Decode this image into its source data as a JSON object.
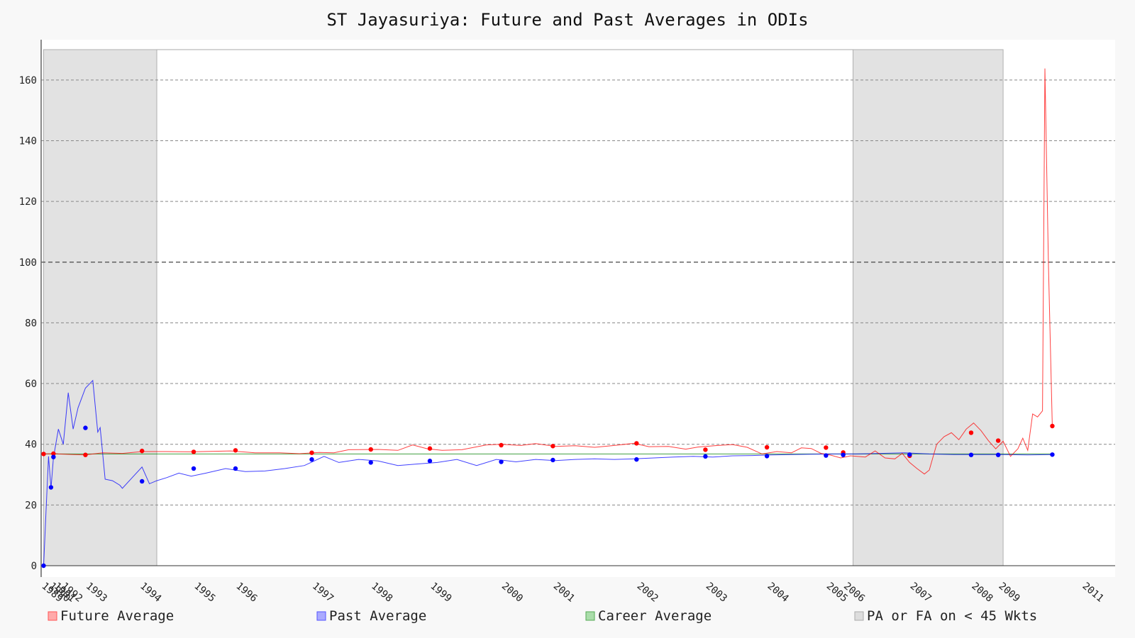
{
  "chart_data": {
    "type": "line",
    "title": "ST Jayasuriya: Future and Past Averages in ODIs",
    "xlabel": "",
    "ylabel": "",
    "xlim": [
      1989.95,
      2011.2
    ],
    "ylim": [
      0,
      170
    ],
    "yticks": [
      0,
      20,
      40,
      60,
      80,
      100,
      120,
      140,
      160
    ],
    "reference_line": 100,
    "grid": true,
    "x_tick_labels": [
      {
        "x": 1989.95,
        "label": "1989"
      },
      {
        "x": 1990.1,
        "label": "1990"
      },
      {
        "x": 1990.2,
        "label": "1991"
      },
      {
        "x": 1990.35,
        "label": "1992"
      },
      {
        "x": 1990.85,
        "label": "1993"
      },
      {
        "x": 1991.95,
        "label": "1994"
      },
      {
        "x": 1993.05,
        "label": "1995"
      },
      {
        "x": 1993.9,
        "label": "1996"
      },
      {
        "x": 1995.45,
        "label": "1997"
      },
      {
        "x": 1996.65,
        "label": "1998"
      },
      {
        "x": 1997.85,
        "label": "1999"
      },
      {
        "x": 1999.3,
        "label": "2000"
      },
      {
        "x": 2000.35,
        "label": "2001"
      },
      {
        "x": 2002.05,
        "label": "2002"
      },
      {
        "x": 2003.45,
        "label": "2003"
      },
      {
        "x": 2004.7,
        "label": "2004"
      },
      {
        "x": 2005.9,
        "label": "2005"
      },
      {
        "x": 2006.25,
        "label": "2006"
      },
      {
        "x": 2007.6,
        "label": "2007"
      },
      {
        "x": 2008.85,
        "label": "2008"
      },
      {
        "x": 2009.4,
        "label": "2009"
      },
      {
        "x": 2011.1,
        "label": "2011"
      }
    ],
    "shaded_regions": [
      {
        "x0": 1990.0,
        "x1": 1992.3
      },
      {
        "x0": 2006.45,
        "x1": 2009.5
      }
    ],
    "series": [
      {
        "name": "Future Average",
        "color": "#ff0000",
        "points": [
          [
            1990.0,
            36.8
          ],
          [
            1990.15,
            36.9
          ],
          [
            1990.2,
            37.0
          ],
          [
            1990.3,
            36.8
          ],
          [
            1990.6,
            36.6
          ],
          [
            1990.85,
            36.5
          ],
          [
            1991.2,
            37.2
          ],
          [
            1991.6,
            37.0
          ],
          [
            1992.0,
            37.6
          ],
          [
            1992.5,
            37.6
          ],
          [
            1993.0,
            37.5
          ],
          [
            1993.8,
            37.8
          ],
          [
            1994.3,
            37.2
          ],
          [
            1994.8,
            37.2
          ],
          [
            1995.2,
            36.9
          ],
          [
            1995.6,
            37.3
          ],
          [
            1995.9,
            37.2
          ],
          [
            1996.2,
            38.2
          ],
          [
            1996.8,
            38.3
          ],
          [
            1997.2,
            38.0
          ],
          [
            1997.5,
            39.8
          ],
          [
            1997.8,
            38.5
          ],
          [
            1998.1,
            38.0
          ],
          [
            1998.5,
            38.2
          ],
          [
            1999.0,
            39.8
          ],
          [
            1999.3,
            40.0
          ],
          [
            1999.7,
            39.6
          ],
          [
            2000.0,
            40.2
          ],
          [
            2000.4,
            39.3
          ],
          [
            2000.8,
            39.5
          ],
          [
            2001.2,
            39.0
          ],
          [
            2001.6,
            39.6
          ],
          [
            2002.0,
            40.3
          ],
          [
            2002.3,
            39.2
          ],
          [
            2002.7,
            39.3
          ],
          [
            2003.05,
            38.4
          ],
          [
            2003.3,
            39.1
          ],
          [
            2003.7,
            39.6
          ],
          [
            2004.0,
            39.9
          ],
          [
            2004.3,
            39.0
          ],
          [
            2004.6,
            36.8
          ],
          [
            2004.9,
            37.6
          ],
          [
            2005.2,
            37.2
          ],
          [
            2005.4,
            38.8
          ],
          [
            2005.6,
            38.6
          ],
          [
            2005.8,
            37.0
          ],
          [
            2006.0,
            36.4
          ],
          [
            2006.2,
            35.5
          ],
          [
            2006.4,
            36.2
          ],
          [
            2006.7,
            35.8
          ],
          [
            2006.9,
            37.8
          ],
          [
            2007.1,
            35.5
          ],
          [
            2007.3,
            35.2
          ],
          [
            2007.45,
            37.0
          ],
          [
            2007.6,
            34.0
          ],
          [
            2007.75,
            32.0
          ],
          [
            2007.9,
            30.2
          ],
          [
            2008.0,
            31.5
          ],
          [
            2008.15,
            40.0
          ],
          [
            2008.3,
            42.5
          ],
          [
            2008.45,
            43.8
          ],
          [
            2008.6,
            41.5
          ],
          [
            2008.75,
            45.0
          ],
          [
            2008.9,
            47.0
          ],
          [
            2009.05,
            44.5
          ],
          [
            2009.2,
            41.2
          ],
          [
            2009.35,
            38.5
          ],
          [
            2009.5,
            41.0
          ],
          [
            2009.65,
            36.0
          ],
          [
            2009.8,
            38.5
          ],
          [
            2009.9,
            42.0
          ],
          [
            2010.0,
            38.0
          ],
          [
            2010.1,
            50.0
          ],
          [
            2010.2,
            49.0
          ],
          [
            2010.3,
            51.0
          ],
          [
            2010.35,
            163.8
          ],
          [
            2010.42,
            100.0
          ],
          [
            2010.5,
            46.0
          ]
        ],
        "markers": [
          [
            1990.0,
            36.8
          ],
          [
            1990.2,
            36.9
          ],
          [
            1990.85,
            36.5
          ],
          [
            1992.0,
            37.8
          ],
          [
            1993.05,
            37.5
          ],
          [
            1993.9,
            38.0
          ],
          [
            1995.45,
            37.2
          ],
          [
            1996.65,
            38.3
          ],
          [
            1997.85,
            38.6
          ],
          [
            1999.3,
            39.7
          ],
          [
            2000.35,
            39.4
          ],
          [
            2002.05,
            40.3
          ],
          [
            2003.45,
            38.2
          ],
          [
            2004.7,
            39.0
          ],
          [
            2005.9,
            38.9
          ],
          [
            2006.25,
            37.3
          ],
          [
            2007.6,
            36.2
          ],
          [
            2008.85,
            43.8
          ],
          [
            2009.4,
            41.2
          ],
          [
            2010.5,
            46.0
          ]
        ]
      },
      {
        "name": "Past Average",
        "color": "#0000ff",
        "points": [
          [
            1990.0,
            0.0
          ],
          [
            1990.05,
            18.0
          ],
          [
            1990.1,
            36.0
          ],
          [
            1990.15,
            25.5
          ],
          [
            1990.2,
            35.5
          ],
          [
            1990.3,
            45.0
          ],
          [
            1990.4,
            40.0
          ],
          [
            1990.5,
            57.0
          ],
          [
            1990.6,
            45.0
          ],
          [
            1990.7,
            52.0
          ],
          [
            1990.85,
            58.5
          ],
          [
            1991.0,
            61.0
          ],
          [
            1991.1,
            44.0
          ],
          [
            1991.15,
            45.5
          ],
          [
            1991.25,
            28.5
          ],
          [
            1991.4,
            28.0
          ],
          [
            1991.55,
            26.5
          ],
          [
            1991.6,
            25.5
          ],
          [
            1991.8,
            29.0
          ],
          [
            1992.0,
            32.5
          ],
          [
            1992.15,
            27.0
          ],
          [
            1992.3,
            28.0
          ],
          [
            1992.5,
            29.0
          ],
          [
            1992.75,
            30.5
          ],
          [
            1993.0,
            29.5
          ],
          [
            1993.3,
            30.5
          ],
          [
            1993.7,
            32.0
          ],
          [
            1994.1,
            31.0
          ],
          [
            1994.5,
            31.2
          ],
          [
            1994.9,
            32.0
          ],
          [
            1995.3,
            33.0
          ],
          [
            1995.7,
            36.0
          ],
          [
            1996.0,
            34.0
          ],
          [
            1996.4,
            35.0
          ],
          [
            1996.8,
            34.5
          ],
          [
            1997.2,
            33.0
          ],
          [
            1997.6,
            33.5
          ],
          [
            1998.0,
            34.0
          ],
          [
            1998.4,
            35.0
          ],
          [
            1998.8,
            33.0
          ],
          [
            1999.2,
            35.0
          ],
          [
            1999.6,
            34.2
          ],
          [
            2000.0,
            35.0
          ],
          [
            2000.4,
            34.6
          ],
          [
            2000.8,
            35.0
          ],
          [
            2001.2,
            35.2
          ],
          [
            2001.6,
            35.0
          ],
          [
            2002.0,
            35.2
          ],
          [
            2002.4,
            35.5
          ],
          [
            2002.8,
            35.8
          ],
          [
            2003.2,
            36.0
          ],
          [
            2003.6,
            35.8
          ],
          [
            2004.0,
            36.2
          ],
          [
            2004.4,
            36.3
          ],
          [
            2004.8,
            36.5
          ],
          [
            2005.2,
            36.6
          ],
          [
            2005.6,
            36.7
          ],
          [
            2006.0,
            36.8
          ],
          [
            2006.5,
            36.8
          ],
          [
            2007.0,
            37.0
          ],
          [
            2007.5,
            37.2
          ],
          [
            2008.0,
            36.8
          ],
          [
            2008.5,
            36.6
          ],
          [
            2009.0,
            36.6
          ],
          [
            2009.5,
            36.6
          ],
          [
            2010.0,
            36.5
          ],
          [
            2010.5,
            36.6
          ]
        ],
        "markers": [
          [
            1990.0,
            0.0
          ],
          [
            1990.15,
            25.8
          ],
          [
            1990.2,
            35.8
          ],
          [
            1990.85,
            45.4
          ],
          [
            1992.0,
            27.8
          ],
          [
            1993.05,
            32.0
          ],
          [
            1993.9,
            32.0
          ],
          [
            1995.45,
            35.0
          ],
          [
            1996.65,
            34.0
          ],
          [
            1997.85,
            34.5
          ],
          [
            1999.3,
            34.2
          ],
          [
            2000.35,
            34.8
          ],
          [
            2002.05,
            35.0
          ],
          [
            2003.45,
            36.0
          ],
          [
            2004.7,
            36.1
          ],
          [
            2005.9,
            36.3
          ],
          [
            2006.25,
            36.5
          ],
          [
            2007.6,
            36.6
          ],
          [
            2008.85,
            36.5
          ],
          [
            2009.4,
            36.5
          ],
          [
            2010.5,
            36.6
          ]
        ]
      },
      {
        "name": "Career Average",
        "color": "#008000",
        "points": [
          [
            1990.0,
            36.8
          ],
          [
            2010.5,
            36.8
          ]
        ],
        "markers": []
      }
    ],
    "legend": {
      "placement": "bottom",
      "items": [
        {
          "label": "Future Average",
          "color": "#ff0000"
        },
        {
          "label": "Past Average",
          "color": "#0000ff"
        },
        {
          "label": "Career Average",
          "color": "#008000"
        },
        {
          "label": "PA or FA on < 45 Wkts",
          "color": "#c8c8c8"
        }
      ]
    }
  }
}
